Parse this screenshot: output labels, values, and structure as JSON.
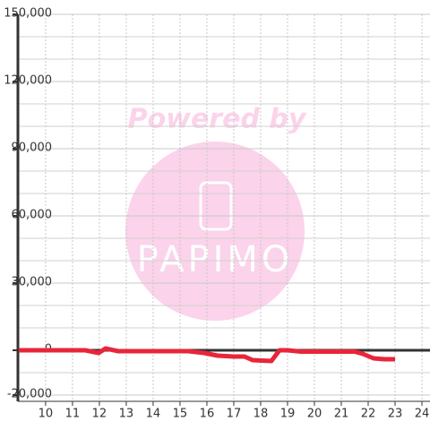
{
  "chart_data": {
    "type": "line",
    "x": [
      9.0,
      11.47,
      11.97,
      12.23,
      12.7,
      15.3,
      15.9,
      16.4,
      17.0,
      17.4,
      17.7,
      18.4,
      18.7,
      19.0,
      19.5,
      21.5,
      21.8,
      22.2,
      22.6,
      23.0
    ],
    "series": [
      {
        "color": "#e8253a",
        "values": [
          0,
          0,
          -1200,
          800,
          -400,
          -400,
          -1200,
          -2400,
          -2800,
          -2800,
          -4400,
          -4800,
          0,
          0,
          -600,
          -600,
          -1600,
          -3600,
          -4000,
          -4000
        ]
      }
    ],
    "xlim": [
      8.97,
      24.3
    ],
    "ylim": [
      -22800,
      150000
    ],
    "xticks": [
      10,
      11,
      12,
      13,
      14,
      15,
      16,
      17,
      18,
      19,
      20,
      21,
      22,
      23,
      24
    ],
    "yticks": [
      {
        "value": 150000,
        "label": "150,000"
      },
      {
        "value": 120000,
        "label": "120,000"
      },
      {
        "value": 90000,
        "label": "90,000"
      },
      {
        "value": 60000,
        "label": "60,000"
      },
      {
        "value": 30000,
        "label": "30,000"
      },
      0,
      {
        "value": -20000,
        "label": "-20,000"
      }
    ],
    "y_minor_grid": [
      140000,
      130000,
      110000,
      100000,
      80000,
      70000,
      50000,
      40000,
      20000,
      10000,
      -10000
    ],
    "grid": true,
    "watermark": {
      "line1": "Powered by",
      "line2": "PAPIMO"
    }
  }
}
